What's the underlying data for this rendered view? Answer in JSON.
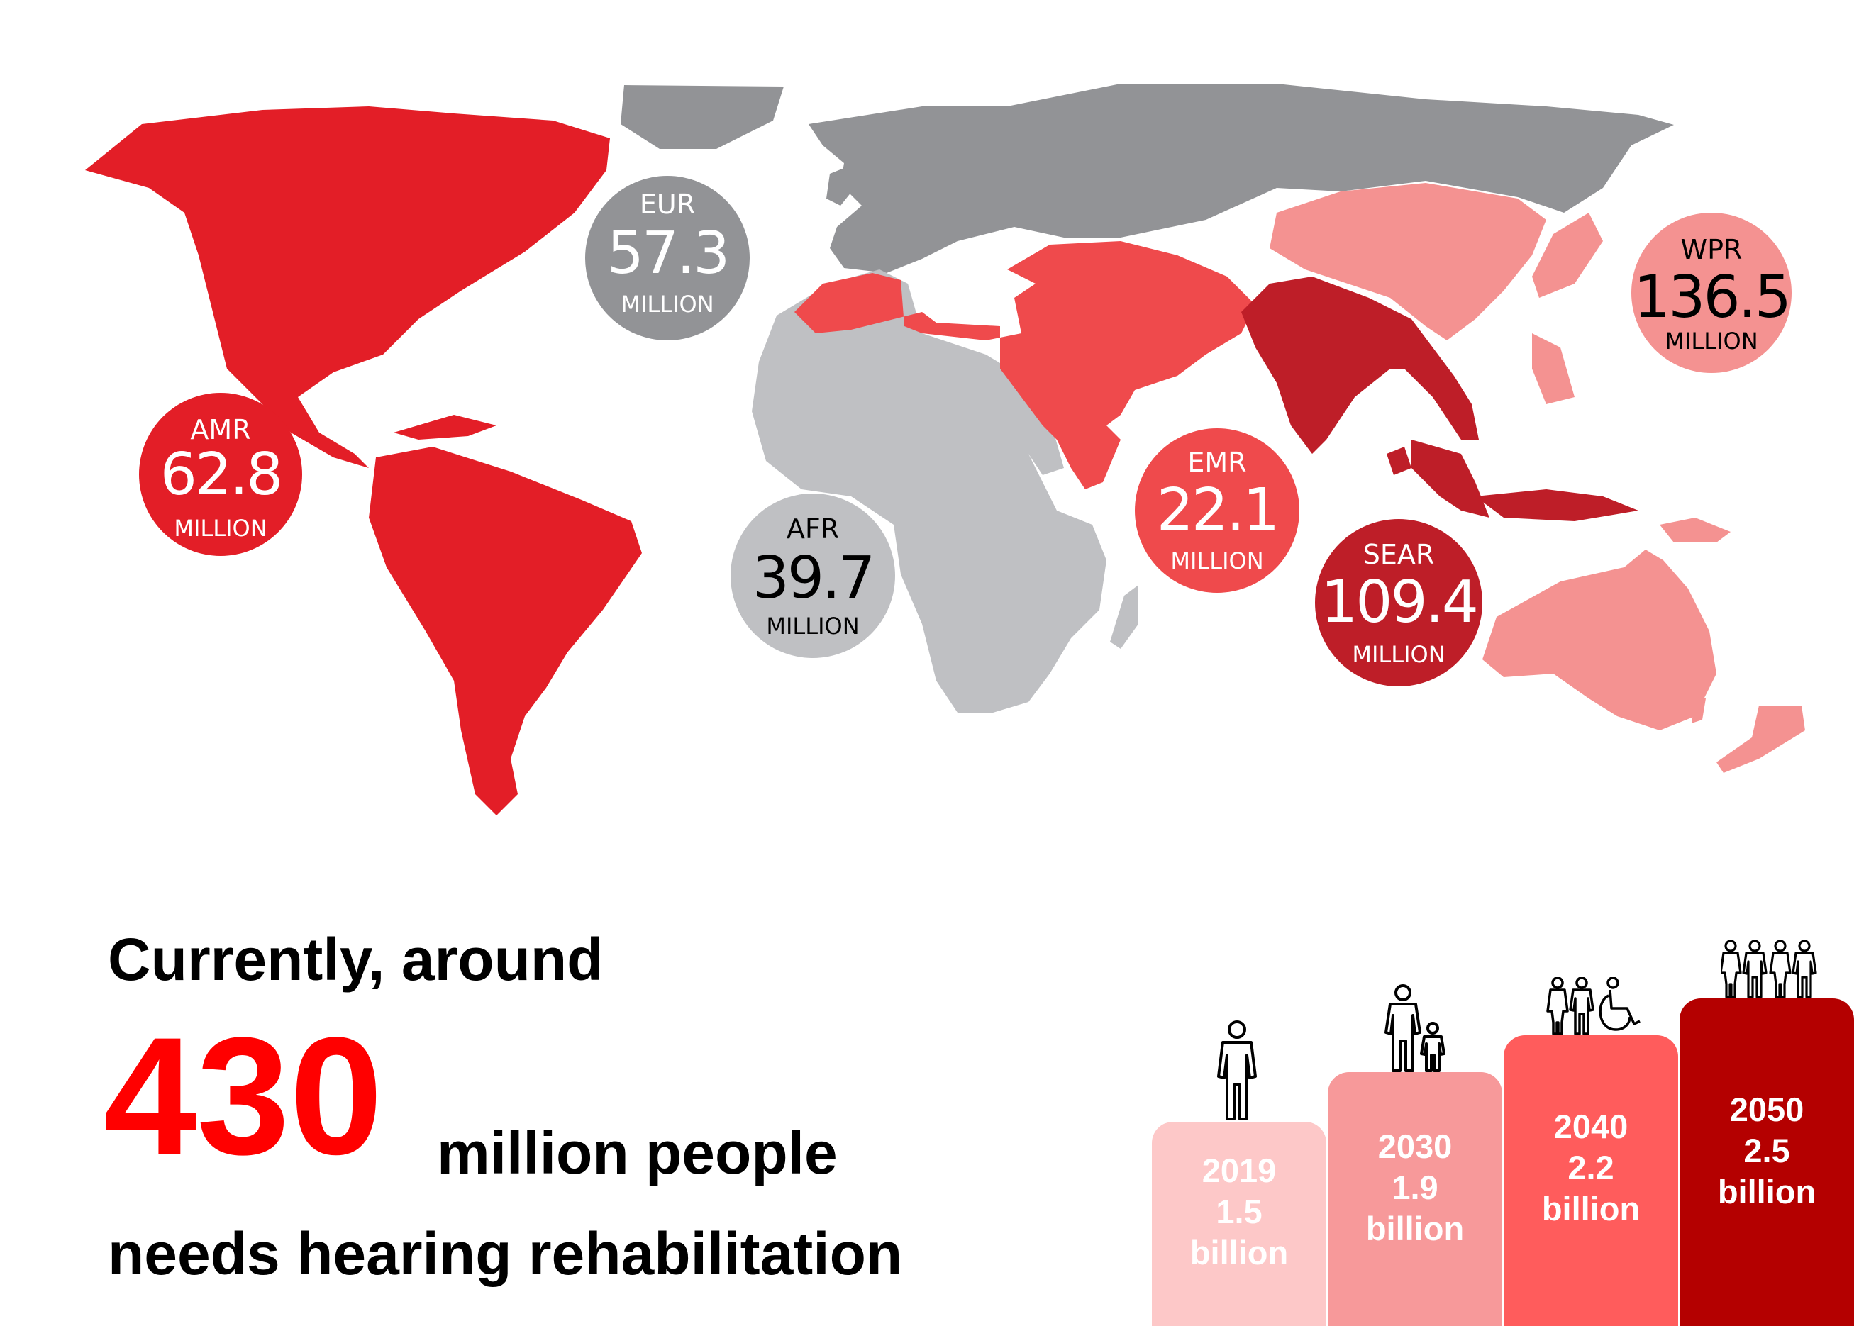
{
  "colors": {
    "eur": "#929396",
    "afr": "#bfc0c3",
    "amr": "#e31e27",
    "emr": "#ef4a4c",
    "sear": "#be1e28",
    "wpr": "#f49291",
    "text_red": "#ff0000"
  },
  "regions": [
    {
      "code": "AMR",
      "value": "62.8",
      "unit": "MILLION"
    },
    {
      "code": "EUR",
      "value": "57.3",
      "unit": "MILLION"
    },
    {
      "code": "AFR",
      "value": "39.7",
      "unit": "MILLION"
    },
    {
      "code": "EMR",
      "value": "22.1",
      "unit": "MILLION"
    },
    {
      "code": "SEAR",
      "value": "109.4",
      "unit": "MILLION"
    },
    {
      "code": "WPR",
      "value": "136.5",
      "unit": "MILLION"
    }
  ],
  "headline": {
    "line1": "Currently, around",
    "number": "430",
    "line2": "million people",
    "line3": "needs hearing rehabilitation"
  },
  "chart_data": {
    "type": "bar",
    "categories": [
      "2019",
      "2030",
      "2040",
      "2050"
    ],
    "values": [
      1.5,
      1.9,
      2.2,
      2.5
    ],
    "value_labels": [
      "1.5",
      "1.9",
      "2.2",
      "2.5"
    ],
    "unit_label": "billion",
    "colors": [
      "#fdc8c8",
      "#f7999a",
      "#ff5c5c",
      "#b40000"
    ],
    "icons": [
      "person-icon",
      "adult-child-icon",
      "two-people-wheelchair-icon",
      "four-people-icon"
    ]
  }
}
